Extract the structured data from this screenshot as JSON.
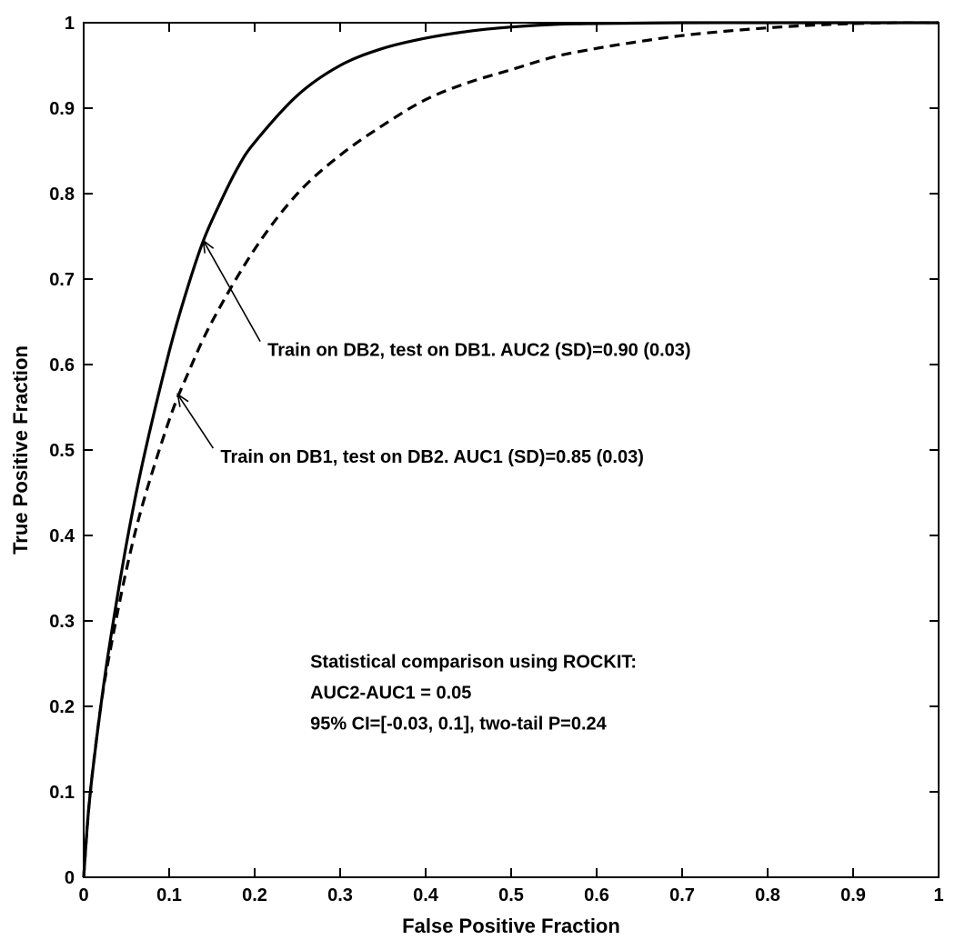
{
  "chart_data": {
    "type": "line",
    "xlabel": "False Positive Fraction",
    "ylabel": "True Positive Fraction",
    "xlim": [
      0,
      1
    ],
    "ylim": [
      0,
      1
    ],
    "grid": false,
    "x_ticks": [
      "0",
      "0.1",
      "0.2",
      "0.3",
      "0.4",
      "0.5",
      "0.6",
      "0.7",
      "0.8",
      "0.9",
      "1"
    ],
    "y_ticks": [
      "0",
      "0.1",
      "0.2",
      "0.3",
      "0.4",
      "0.5",
      "0.6",
      "0.7",
      "0.8",
      "0.9",
      "1"
    ],
    "series": [
      {
        "style": "solid",
        "x": [
          0,
          0.005,
          0.01,
          0.02,
          0.03,
          0.05,
          0.07,
          0.1,
          0.12,
          0.14,
          0.16,
          0.18,
          0.2,
          0.25,
          0.3,
          0.35,
          0.4,
          0.45,
          0.5,
          0.55,
          0.6,
          0.7,
          0.8,
          0.9,
          1
        ],
        "y": [
          0,
          0.07,
          0.12,
          0.2,
          0.27,
          0.39,
          0.49,
          0.615,
          0.685,
          0.745,
          0.79,
          0.83,
          0.86,
          0.915,
          0.95,
          0.97,
          0.982,
          0.99,
          0.995,
          0.998,
          0.999,
          1,
          1,
          1,
          1
        ]
      },
      {
        "style": "dashed",
        "x": [
          0,
          0.005,
          0.01,
          0.02,
          0.03,
          0.05,
          0.07,
          0.1,
          0.12,
          0.15,
          0.2,
          0.25,
          0.3,
          0.35,
          0.4,
          0.45,
          0.5,
          0.55,
          0.6,
          0.65,
          0.7,
          0.75,
          0.8,
          0.85,
          0.9,
          0.95,
          1
        ],
        "y": [
          0,
          0.07,
          0.12,
          0.2,
          0.26,
          0.36,
          0.44,
          0.535,
          0.585,
          0.65,
          0.735,
          0.8,
          0.845,
          0.88,
          0.91,
          0.93,
          0.945,
          0.96,
          0.97,
          0.978,
          0.985,
          0.99,
          0.994,
          0.997,
          0.999,
          1,
          1
        ]
      }
    ],
    "annotations": [
      {
        "text": "Train on DB2, test on DB1. AUC2 (SD)=0.90 (0.03)",
        "x": 0.215,
        "y": 0.61,
        "arrow_to": [
          0.14,
          0.745
        ]
      },
      {
        "text": "Train on DB1, test on DB2. AUC1 (SD)=0.85 (0.03)",
        "x": 0.16,
        "y": 0.485,
        "arrow_to": [
          0.11,
          0.565
        ]
      }
    ],
    "stats_box": [
      "Statistical comparison using ROCKIT:",
      "AUC2-AUC1 = 0.05",
      "95% CI=[-0.03, 0.1], two-tail P=0.24"
    ],
    "stats_box_pos": {
      "x": 0.265,
      "y": 0.245
    }
  }
}
